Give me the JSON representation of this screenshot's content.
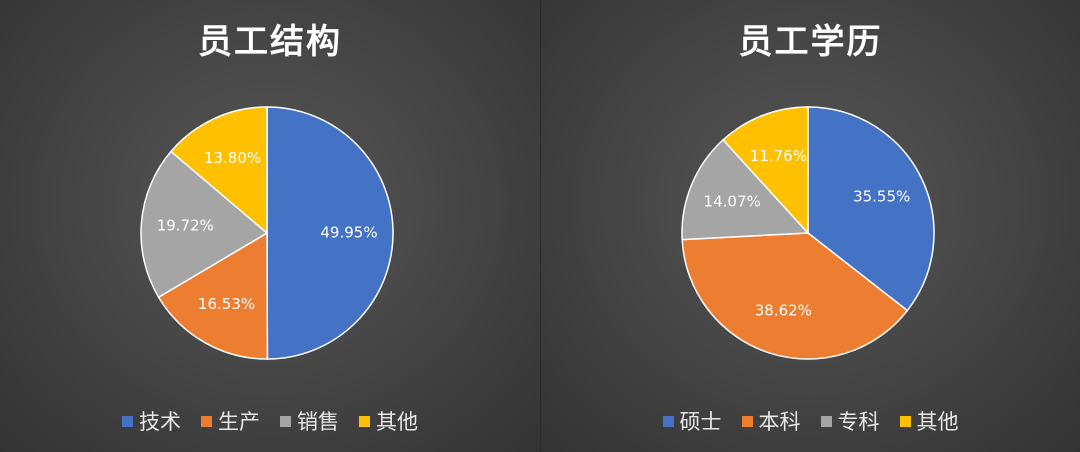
{
  "chart_data": [
    {
      "type": "pie",
      "title": "员工结构",
      "categories": [
        "技术",
        "生产",
        "销售",
        "其他"
      ],
      "values": [
        49.95,
        16.53,
        19.72,
        13.8
      ],
      "labels": [
        "49.95%",
        "16.53%",
        "19.72%",
        "13.80%"
      ],
      "colors": [
        "#4472C4",
        "#ED7D31",
        "#A5A5A5",
        "#FFC000"
      ],
      "legend_position": "bottom"
    },
    {
      "type": "pie",
      "title": "员工学历",
      "categories": [
        "硕士",
        "本科",
        "专科",
        "其他"
      ],
      "values": [
        35.55,
        38.62,
        14.07,
        11.76
      ],
      "labels": [
        "35.55%",
        "38.62%",
        "14.07%",
        "11.76%"
      ],
      "colors": [
        "#4472C4",
        "#ED7D31",
        "#A5A5A5",
        "#FFC000"
      ],
      "legend_position": "bottom"
    }
  ]
}
